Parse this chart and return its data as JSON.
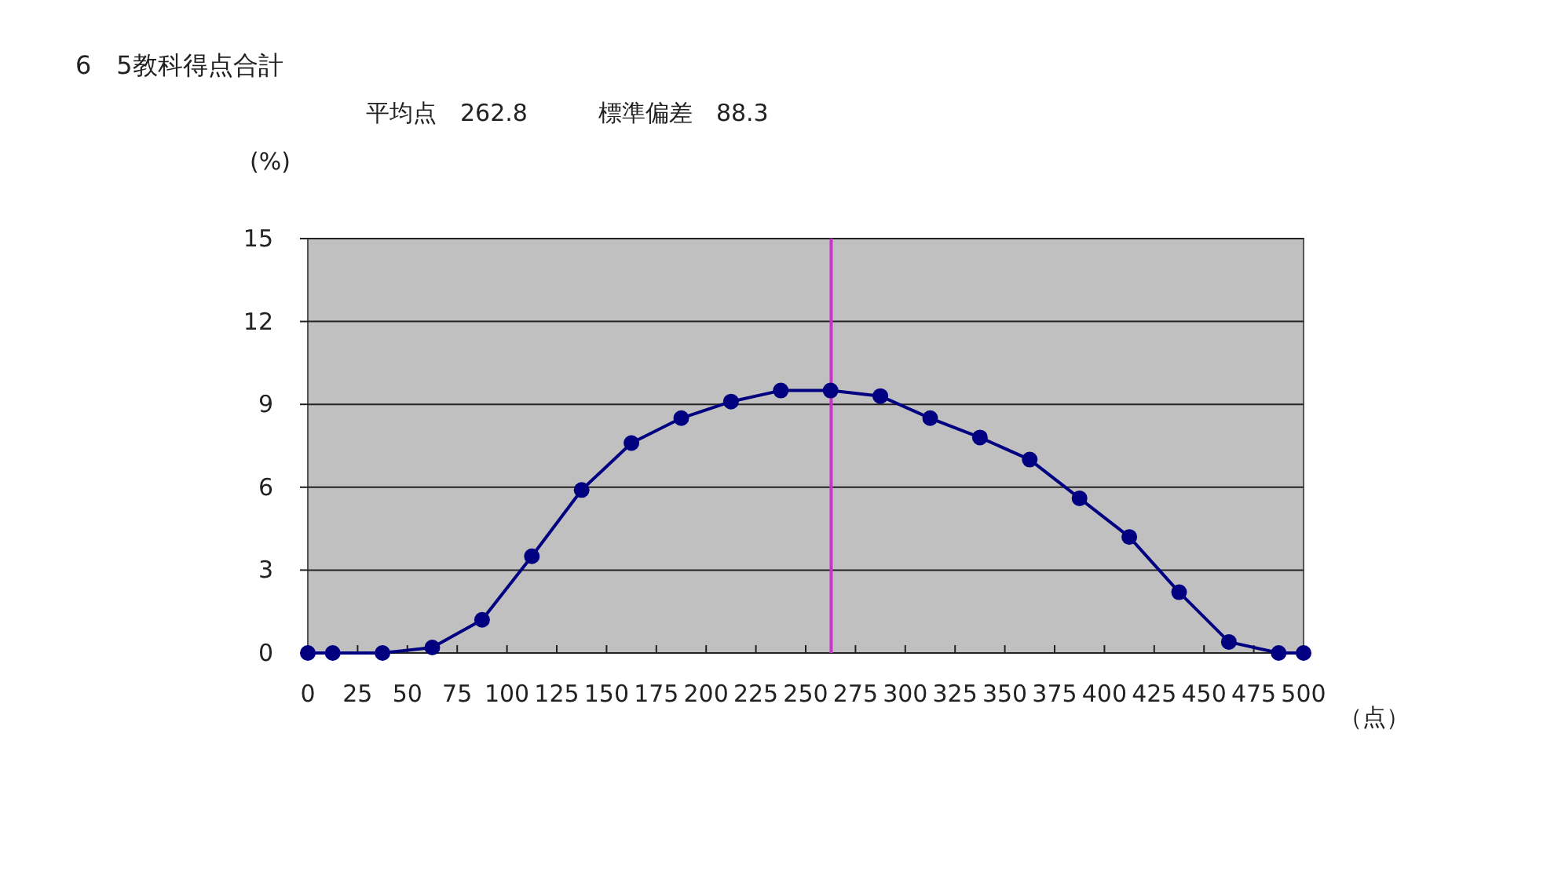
{
  "chart_data": {
    "type": "line",
    "title": "6　5教科得点合計",
    "subtitle": "平均点　262.8　　　標準偏差　88.3",
    "xlabel": "（点）",
    "ylabel": "(%)",
    "x": [
      0,
      12.5,
      37.5,
      62.5,
      87.5,
      112.5,
      137.5,
      162.5,
      187.5,
      212.5,
      237.5,
      262.5,
      287.5,
      312.5,
      337.5,
      362.5,
      387.5,
      412.5,
      437.5,
      462.5,
      487.5,
      500
    ],
    "series": [
      {
        "color": "#000080",
        "values": [
          0,
          0,
          0,
          0.2,
          1.2,
          3.5,
          5.9,
          7.6,
          8.5,
          9.1,
          9.5,
          9.5,
          9.3,
          8.5,
          7.8,
          7.0,
          5.6,
          4.2,
          2.2,
          0.4,
          0,
          0
        ]
      }
    ],
    "xlim": [
      0,
      500
    ],
    "xticks": [
      0,
      25,
      50,
      75,
      100,
      125,
      150,
      175,
      200,
      225,
      250,
      275,
      300,
      325,
      350,
      375,
      400,
      425,
      450,
      475,
      500
    ],
    "ylim": [
      0,
      15
    ],
    "yticks": [
      0,
      3,
      6,
      9,
      12,
      15
    ],
    "grid": "y",
    "marker": "circle",
    "line_style": "solid",
    "ref_lines": [
      {
        "axis": "x",
        "value": 262.8,
        "color": "#cc33cc"
      }
    ]
  }
}
